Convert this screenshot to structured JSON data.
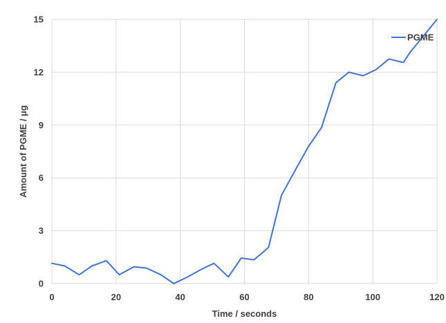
{
  "chart_data": {
    "type": "line",
    "title": "",
    "xlabel": "Time / seconds",
    "ylabel": "Amount of PGME / μg",
    "xlim": [
      0,
      120
    ],
    "ylim": [
      0,
      15
    ],
    "x_ticks": [
      "0",
      "20",
      "40",
      "60",
      "80",
      "100",
      "120"
    ],
    "y_ticks": [
      "0",
      "3",
      "6",
      "9",
      "12",
      "15"
    ],
    "grid": true,
    "legend_position": "top-right",
    "series": [
      {
        "name": "PGME",
        "color": "#4472c4",
        "x": [
          0,
          4,
          8.5,
          12.5,
          17,
          21,
          25.5,
          29.5,
          34,
          38,
          42,
          46.5,
          50.5,
          55,
          59,
          63,
          67.5,
          71.5,
          76,
          80,
          84,
          88.5,
          92.5,
          97,
          101,
          105,
          109.5,
          111.5,
          120
        ],
        "y": [
          1.15,
          1.0,
          0.5,
          1.0,
          1.3,
          0.5,
          0.95,
          0.88,
          0.5,
          0.0,
          0.35,
          0.8,
          1.15,
          0.38,
          1.45,
          1.35,
          2.05,
          5.0,
          6.5,
          7.8,
          8.85,
          11.4,
          12.0,
          11.8,
          12.15,
          12.75,
          12.55,
          13.1,
          15.0
        ]
      }
    ]
  }
}
